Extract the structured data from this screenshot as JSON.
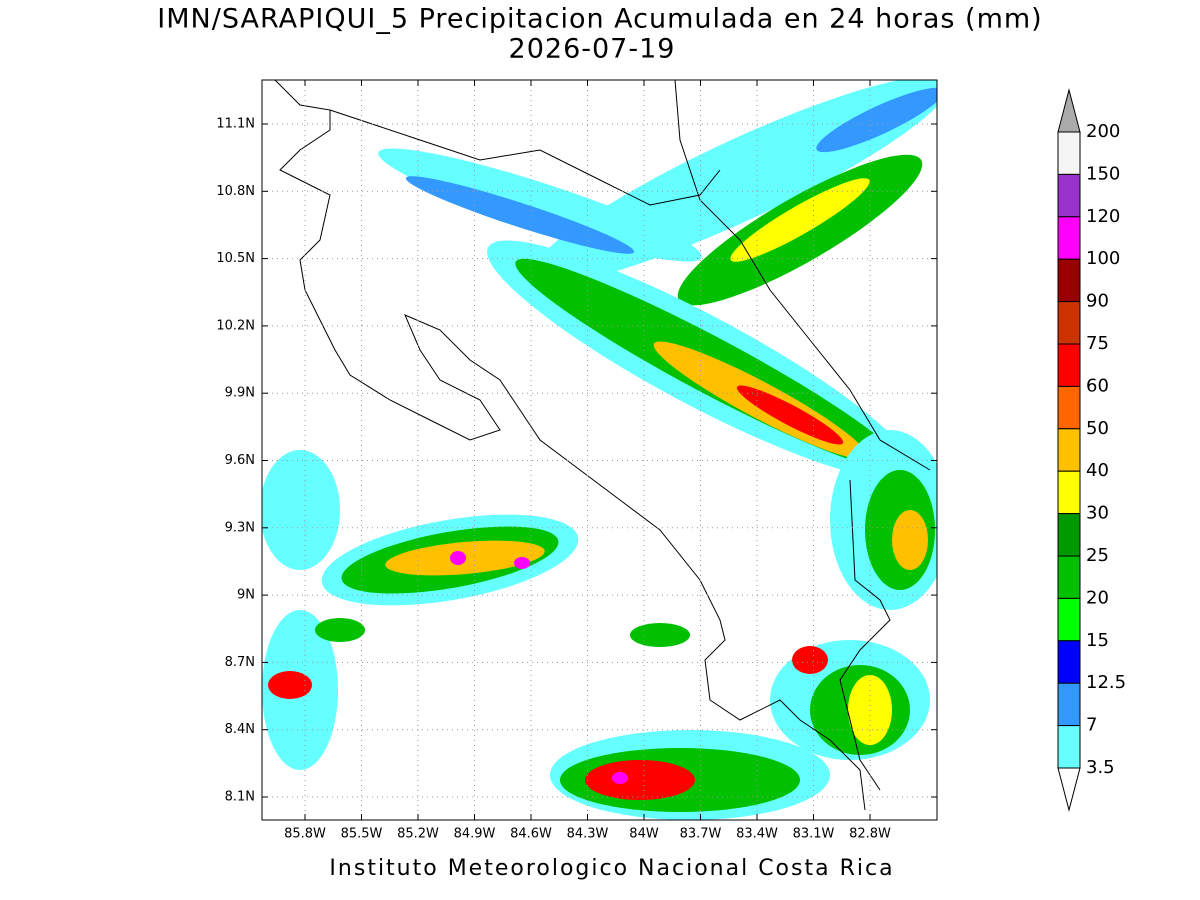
{
  "title": "IMN/SARAPIQUI_5 Precipitacion Acumulada en 24 horas (mm)",
  "subtitle": "2026-07-19",
  "map": {
    "lat_labels": [
      "11.1N",
      "10.8N",
      "10.5N",
      "10.2N",
      "9.9N",
      "9.6N",
      "9.3N",
      "9N",
      "8.7N",
      "8.4N",
      "8.1N"
    ],
    "lon_labels": [
      "85.8W",
      "85.5W",
      "85.2W",
      "84.9W",
      "84.6W",
      "84.3W",
      "84W",
      "83.7W",
      "83.4W",
      "83.1W",
      "82.8W"
    ]
  },
  "legend": {
    "labels": [
      200,
      150,
      120,
      100,
      90,
      75,
      60,
      50,
      40,
      30,
      25,
      20,
      15,
      12.5,
      7,
      3.5
    ],
    "colors": [
      "#f5f5f5",
      "#9933cc",
      "#ff00ff",
      "#990000",
      "#cc3300",
      "#ff0000",
      "#ff6600",
      "#ffc000",
      "#ffff00",
      "#009900",
      "#00c000",
      "#00ff00",
      "#0000ff",
      "#3399ff",
      "#66ffff"
    ],
    "over_color": "#aaaaaa",
    "under_color": "#ffffff"
  },
  "footer": "Instituto Meteorologico Nacional Costa Rica"
}
